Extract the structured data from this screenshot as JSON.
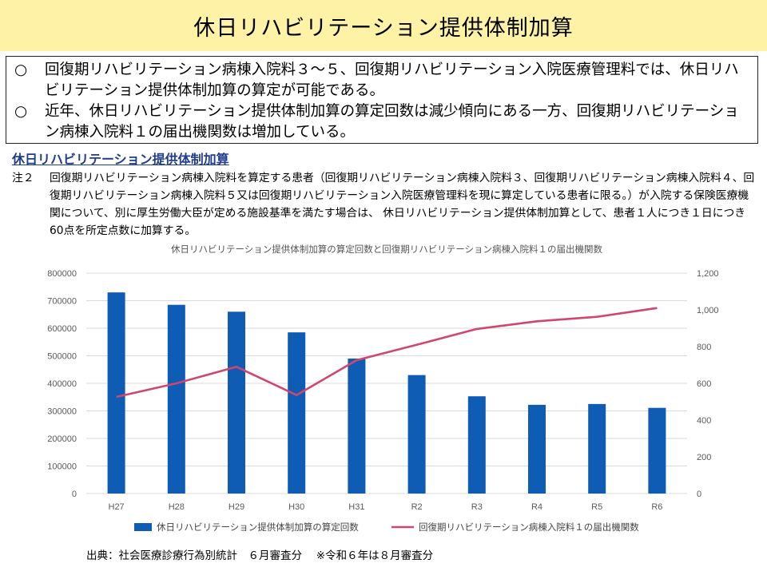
{
  "header": {
    "title": "休日リハビリテーション提供体制加算"
  },
  "summary": {
    "items": [
      {
        "mark": "○",
        "text": "回復期リハビリテーション病棟入院料３～５、回復期リハビリテーション入院医療管理料では、休日リハビリテーション提供体制加算の算定が可能である。"
      },
      {
        "mark": "○",
        "text": "近年、休日リハビリテーション提供体制加算の算定回数は減少傾向にある一方、回復期リハビリテーション病棟入院料１の届出機関数は増加している。"
      }
    ]
  },
  "section_heading": "休日リハビリテーション提供体制加算",
  "note": {
    "label": "注２",
    "text": "回復期リハビリテーション病棟入院料を算定する患者（回復期リハビリテーション病棟入院料３、回復期リハビリテーション病棟入院料４、回復期リハビリテーション病棟入院料５又は回復期リハビリテーション入院医療管理料を現に算定している患者に限る。）が入院する保険医療機関について、別に厚生労働大臣が定める施設基準を満たす場合は、 休日リハビリテーション提供体制加算として、患者１人につき１日につき60点を所定点数に加算する。"
  },
  "chart_data": {
    "type": "bar",
    "title": "休日リハビリテーション提供体制加算の算定回数と回復期リハビリテーション病棟入院料１の届出機関数",
    "categories": [
      "H27",
      "H28",
      "H29",
      "H30",
      "H31",
      "R2",
      "R3",
      "R4",
      "R5",
      "R6"
    ],
    "series": [
      {
        "name": "休日リハビリテーション提供体制加算の算定回数",
        "type": "bar",
        "axis": "left",
        "color": "#0f5cb5",
        "values": [
          730000,
          685000,
          660000,
          585000,
          490000,
          430000,
          353000,
          322000,
          325000,
          311000
        ]
      },
      {
        "name": "回復期リハビリテーション病棟入院料１の届出機関数",
        "type": "line",
        "axis": "right",
        "color": "#d1466e",
        "values": [
          526,
          600,
          690,
          536,
          726,
          810,
          896,
          938,
          962,
          1010
        ]
      }
    ],
    "y_left": {
      "min": 0,
      "max": 800000,
      "step": 100000,
      "ticks": [
        "0",
        "100000",
        "200000",
        "300000",
        "400000",
        "500000",
        "600000",
        "700000",
        "800000"
      ]
    },
    "y_right": {
      "min": 0,
      "max": 1200,
      "step": 200,
      "ticks": [
        "0",
        "200",
        "400",
        "600",
        "800",
        "1,000",
        "1,200"
      ]
    },
    "grid": true,
    "legend": "bottom"
  },
  "source": "出典：社会医療診療行為別統計　６月審査分　 ※令和６年は８月審査分"
}
